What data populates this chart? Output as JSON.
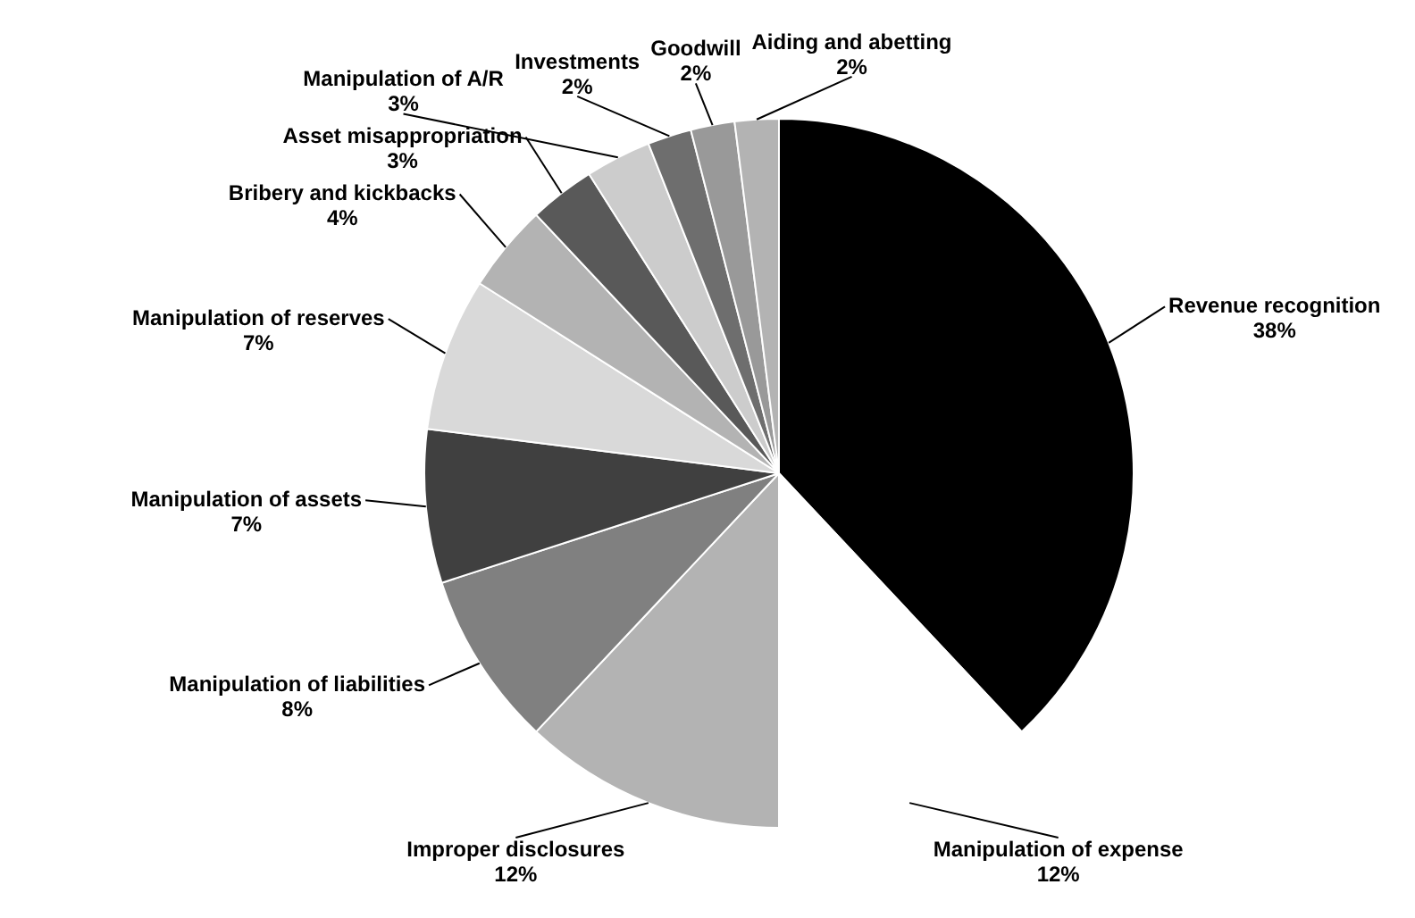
{
  "chart_data": {
    "type": "pie",
    "categories": [
      "Revenue recognition",
      "Manipulation of expense",
      "Improper disclosures",
      "Manipulation of liabilities",
      "Manipulation of assets",
      "Manipulation of reserves",
      "Bribery and kickbacks",
      "Asset misappropriation",
      "Manipulation of A/R",
      "Investments",
      "Goodwill",
      "Aiding and abetting"
    ],
    "values": [
      38,
      12,
      12,
      8,
      7,
      7,
      4,
      3,
      3,
      2,
      2,
      2
    ],
    "value_labels": [
      "38%",
      "12%",
      "12%",
      "8%",
      "7%",
      "7%",
      "4%",
      "3%",
      "3%",
      "2%",
      "2%",
      "2%"
    ],
    "colors": [
      "#000000",
      "#ffffff",
      "#b3b3b3",
      "#808080",
      "#404040",
      "#d9d9d9",
      "#b3b3b3",
      "#595959",
      "#cccccc",
      "#6e6e6e",
      "#999999",
      "#b3b3b3"
    ],
    "legend": false
  }
}
